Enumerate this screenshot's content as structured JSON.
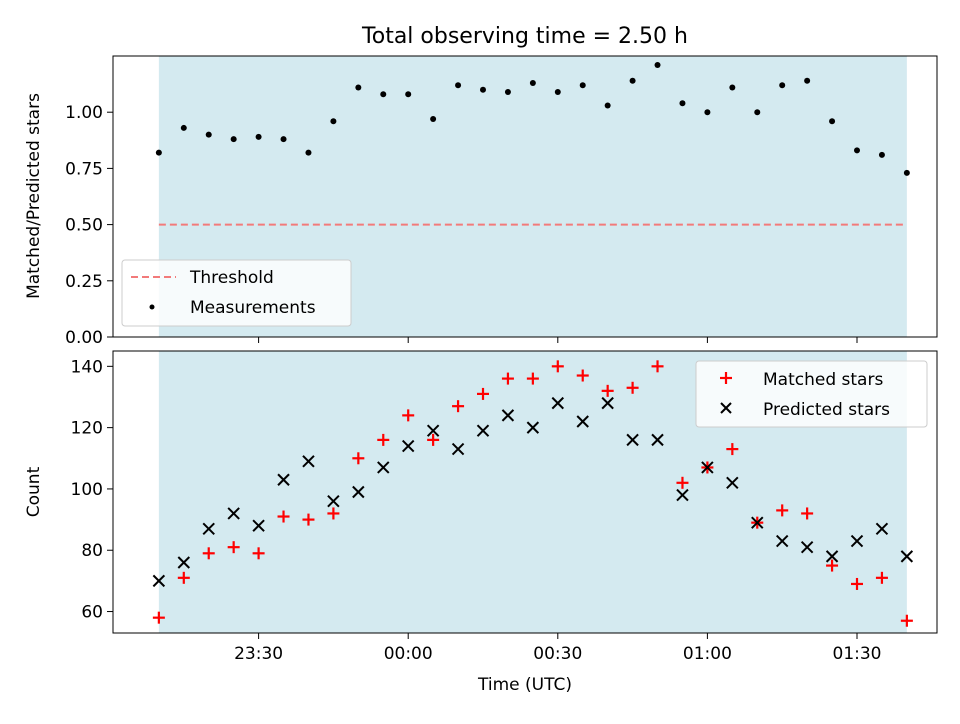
{
  "title": "Total observing time = 2.50 h",
  "xlabel": "Time (UTC)",
  "colors": {
    "shade": "#d4eaf0",
    "threshold": "#f27a7a",
    "matched": "#ff0000",
    "predicted": "#000000",
    "measurement": "#000000"
  },
  "x_ticks": [
    "23:30",
    "00:00",
    "00:30",
    "01:00",
    "01:30"
  ],
  "chart_data": [
    {
      "type": "scatter",
      "panel": "top",
      "ylabel": "Matched/Predicted stars",
      "ylim": [
        0,
        1.25
      ],
      "yticks": [
        "0.00",
        "0.25",
        "0.50",
        "0.75",
        "1.00"
      ],
      "threshold": 0.5,
      "legend": {
        "position": "lower-left",
        "entries": [
          "Threshold",
          "Measurements"
        ]
      },
      "x_minutes_after_23_00": [
        10,
        15,
        20,
        25,
        30,
        35,
        40,
        45,
        50,
        55,
        60,
        65,
        70,
        75,
        80,
        85,
        90,
        95,
        100,
        105,
        110,
        115,
        120,
        125,
        130,
        135,
        140,
        145,
        150,
        155,
        160
      ],
      "values": [
        0.82,
        0.93,
        0.9,
        0.88,
        0.89,
        0.88,
        0.82,
        0.96,
        1.11,
        1.08,
        1.08,
        0.97,
        1.12,
        1.1,
        1.09,
        1.13,
        1.09,
        1.12,
        1.03,
        1.14,
        1.21,
        1.04,
        1.0,
        1.11,
        1.0,
        1.12,
        1.14,
        0.96,
        0.83,
        0.81,
        0.73
      ]
    },
    {
      "type": "scatter",
      "panel": "bottom",
      "ylabel": "Count",
      "ylim": [
        53,
        145
      ],
      "yticks": [
        "60",
        "80",
        "100",
        "120",
        "140"
      ],
      "legend": {
        "position": "top-right",
        "entries": [
          "Matched stars",
          "Predicted stars"
        ]
      },
      "x_minutes_after_23_00": [
        10,
        15,
        20,
        25,
        30,
        35,
        40,
        45,
        50,
        55,
        60,
        65,
        70,
        75,
        80,
        85,
        90,
        95,
        100,
        105,
        110,
        115,
        120,
        125,
        130,
        135,
        140,
        145,
        150,
        155,
        160
      ],
      "series": [
        {
          "name": "Matched stars",
          "marker": "plus",
          "values": [
            58,
            71,
            79,
            81,
            79,
            91,
            90,
            92,
            110,
            116,
            124,
            116,
            127,
            131,
            136,
            136,
            140,
            137,
            132,
            133,
            140,
            102,
            107,
            113,
            89,
            93,
            92,
            75,
            69,
            71,
            57
          ]
        },
        {
          "name": "Predicted stars",
          "marker": "x",
          "values": [
            70,
            76,
            87,
            92,
            88,
            103,
            109,
            96,
            99,
            107,
            114,
            119,
            113,
            119,
            124,
            120,
            128,
            122,
            128,
            116,
            116,
            98,
            107,
            102,
            89,
            83,
            81,
            78,
            83,
            87,
            78
          ]
        }
      ]
    }
  ]
}
